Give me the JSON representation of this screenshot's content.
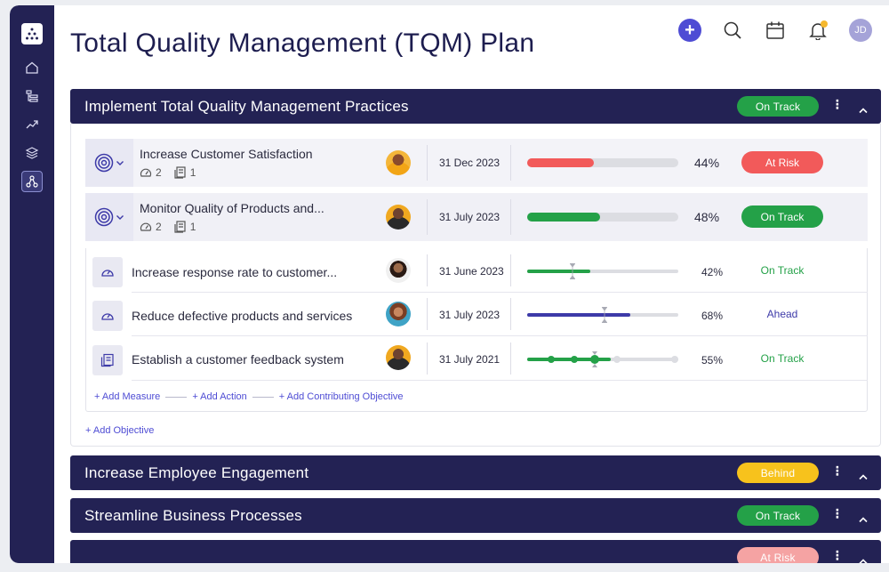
{
  "page": {
    "title": "Total Quality Management (TQM) Plan"
  },
  "header": {
    "user_initials": "JD",
    "add_label": "+"
  },
  "colors": {
    "navy": "#232254",
    "green": "#24a148",
    "red": "#f25a5a",
    "yellow": "#f7c21c",
    "pink": "#f5a3a3",
    "purple": "#3d3aa8",
    "accent": "#4e4cd4"
  },
  "sections": [
    {
      "title": "Implement Total Quality Management Practices",
      "status": "On Track"
    },
    {
      "title": "Increase Employee Engagement",
      "status": "Behind"
    },
    {
      "title": "Streamline Business Processes",
      "status": "On Track"
    },
    {
      "title": "",
      "status": "At Risk"
    }
  ],
  "objectives": [
    {
      "title": "Increase Customer Satisfaction",
      "measures": "2",
      "actions": "1",
      "date": "31 Dec 2023",
      "progress": 44,
      "progress_label": "44%",
      "status": "At Risk"
    },
    {
      "title": "Monitor Quality of Products and...",
      "measures": "2",
      "actions": "1",
      "date": "31 July 2023",
      "progress": 48,
      "progress_label": "48%",
      "status": "On Track"
    }
  ],
  "sub_items": [
    {
      "title": "Increase response rate to customer...",
      "date": "31 June 2023",
      "progress": 42,
      "progress_label": "42%",
      "status": "On Track",
      "kind": "measure"
    },
    {
      "title": "Reduce defective products and services",
      "date": "31 July 2023",
      "progress": 68,
      "progress_label": "68%",
      "status": "Ahead",
      "kind": "measure"
    },
    {
      "title": "Establish a customer feedback system",
      "date": "31 July 2021",
      "progress": 55,
      "progress_label": "55%",
      "status": "On Track",
      "kind": "action"
    }
  ],
  "add_links": {
    "measure": "+ Add Measure",
    "action": "+ Add Action",
    "contributing": "+ Add Contributing Objective",
    "objective": "+ Add Objective"
  }
}
